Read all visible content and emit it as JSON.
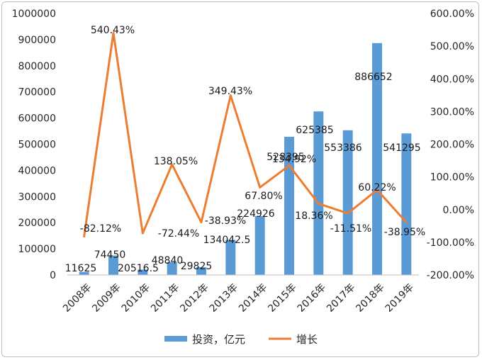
{
  "chart_data": {
    "type": "bar+line",
    "categories": [
      "2008年",
      "2009年",
      "2010年",
      "2011年",
      "2012年",
      "2013年",
      "2014年",
      "2015年",
      "2016年",
      "2017年",
      "2018年",
      "2019年"
    ],
    "series": [
      {
        "name": "投资，亿元",
        "type": "bar",
        "axis": "left",
        "values": [
          11625,
          74450,
          20516.5,
          48840,
          29825,
          134042.5,
          224926,
          528395,
          625385,
          553386,
          886652,
          541295
        ],
        "labels": [
          "11625",
          "74450",
          "20516.5",
          "48840",
          "29825",
          "134042.5",
          "224926",
          "528395",
          "625385",
          "553386",
          "886652",
          "541295"
        ],
        "color": "#5b9bd5"
      },
      {
        "name": "增长",
        "type": "line",
        "axis": "right",
        "values": [
          -82.12,
          540.43,
          -72.44,
          138.05,
          -38.93,
          349.43,
          67.8,
          134.92,
          18.36,
          -11.51,
          60.22,
          -38.95
        ],
        "labels": [
          "-82.12%",
          "540.43%",
          "-72.44%",
          "138.05%",
          "-38.93%",
          "349.43%",
          "67.80%",
          "134.92%",
          "18.36%",
          "-11.51%",
          "60.22%",
          "-38.95%"
        ],
        "color": "#ed7d31"
      }
    ],
    "left_axis": {
      "ylim": [
        0,
        1000000
      ],
      "ticks": [
        0,
        100000,
        200000,
        300000,
        400000,
        500000,
        600000,
        700000,
        800000,
        900000,
        1000000
      ],
      "tick_labels": [
        "0",
        "100000",
        "200000",
        "300000",
        "400000",
        "500000",
        "600000",
        "700000",
        "800000",
        "900000",
        "1000000"
      ]
    },
    "right_axis": {
      "ylim": [
        -200,
        600
      ],
      "ticks": [
        -200,
        -100,
        0,
        100,
        200,
        300,
        400,
        500,
        600
      ],
      "tick_labels": [
        "-200.00%",
        "-100.00%",
        "0.00%",
        "100.00%",
        "200.00%",
        "300.00%",
        "400.00%",
        "500.00%",
        "600.00%"
      ]
    },
    "grid": false,
    "legend": "bottom"
  }
}
